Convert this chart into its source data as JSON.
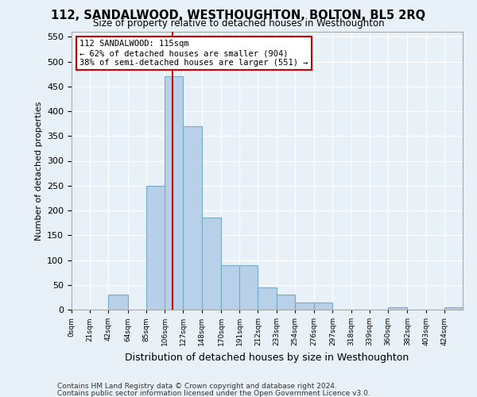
{
  "title": "112, SANDALWOOD, WESTHOUGHTON, BOLTON, BL5 2RQ",
  "subtitle": "Size of property relative to detached houses in Westhoughton",
  "xlabel": "Distribution of detached houses by size in Westhoughton",
  "ylabel": "Number of detached properties",
  "bar_color": "#b8d0e8",
  "bar_edge_color": "#7aaaca",
  "background_color": "#e8f0f8",
  "grid_color": "#ffffff",
  "annotation_box_color": "#ffffff",
  "annotation_border_color": "#cc0000",
  "vline_color": "#cc0000",
  "property_size": 115,
  "annotation_line1": "112 SANDALWOOD: 115sqm",
  "annotation_line2": "← 62% of detached houses are smaller (904)",
  "annotation_line3": "38% of semi-detached houses are larger (551) →",
  "footnote1": "Contains HM Land Registry data © Crown copyright and database right 2024.",
  "footnote2": "Contains public sector information licensed under the Open Government Licence v3.0.",
  "bin_labels": [
    "0sqm",
    "21sqm",
    "42sqm",
    "64sqm",
    "85sqm",
    "106sqm",
    "127sqm",
    "148sqm",
    "170sqm",
    "191sqm",
    "212sqm",
    "233sqm",
    "254sqm",
    "276sqm",
    "297sqm",
    "318sqm",
    "339sqm",
    "360sqm",
    "382sqm",
    "403sqm",
    "424sqm"
  ],
  "bin_edges": [
    0,
    21,
    42,
    64,
    85,
    106,
    127,
    148,
    170,
    191,
    212,
    233,
    254,
    276,
    297,
    318,
    339,
    360,
    382,
    403,
    424,
    445
  ],
  "bar_heights": [
    0,
    0,
    30,
    0,
    250,
    470,
    370,
    185,
    90,
    90,
    45,
    30,
    15,
    15,
    0,
    0,
    0,
    5,
    0,
    0,
    5
  ],
  "ylim": [
    0,
    560
  ],
  "yticks": [
    0,
    50,
    100,
    150,
    200,
    250,
    300,
    350,
    400,
    450,
    500,
    550
  ]
}
